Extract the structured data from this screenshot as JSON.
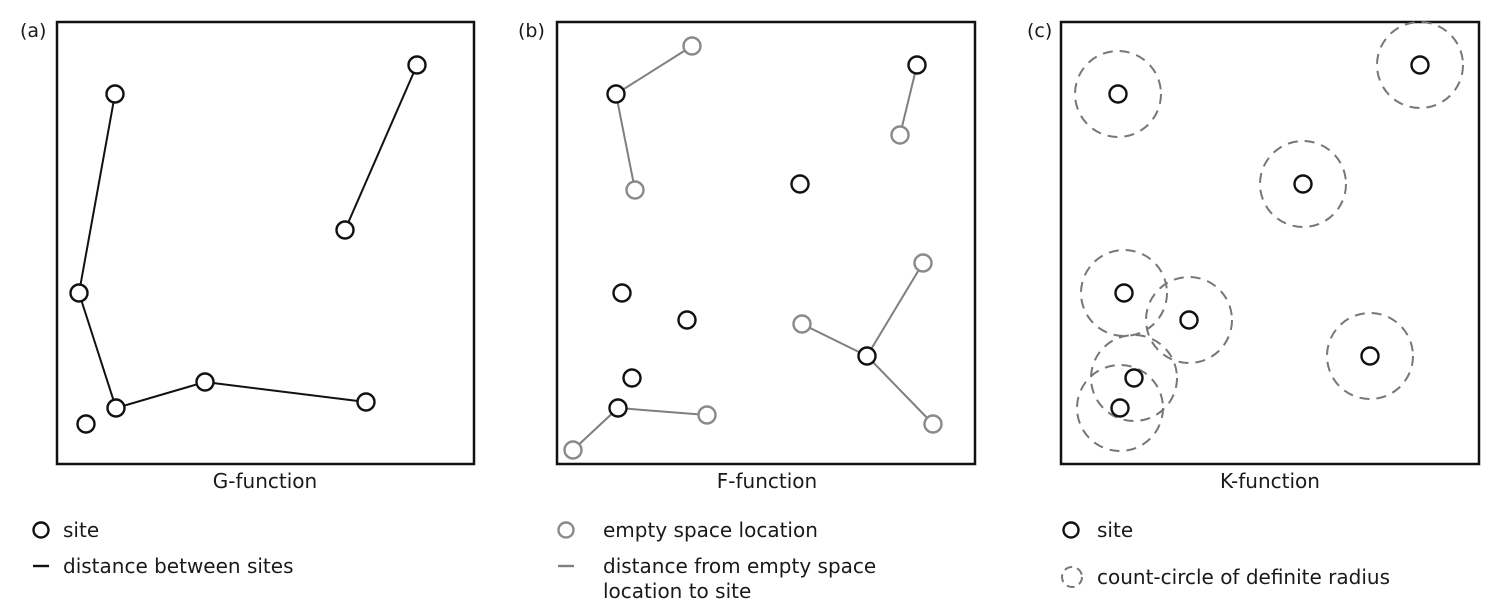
{
  "panels": [
    {
      "label": "(a)",
      "caption": "G-function",
      "legend": {
        "marker_label": "site",
        "line_label": "distance between sites"
      }
    },
    {
      "label": "(b)",
      "caption": "F-function",
      "legend": {
        "marker_label": "empty space location",
        "line_label_1": "distance from empty space",
        "line_label_2": "location to site"
      }
    },
    {
      "label": "(c)",
      "caption": "K-function",
      "legend": {
        "marker_label": "site",
        "circle_label": "count-circle of definite radius"
      }
    }
  ],
  "colors": {
    "site": "#111111",
    "empty_space": "#8a8a8a",
    "count_circle": "#777777"
  }
}
